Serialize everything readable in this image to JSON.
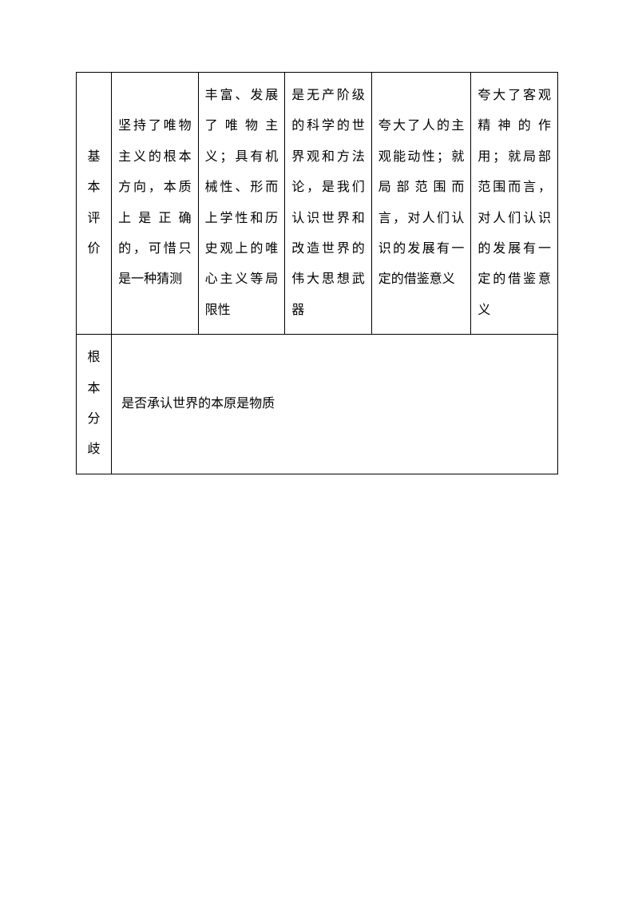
{
  "table": {
    "rows": [
      {
        "header": "基本评价",
        "cells": [
          "坚持了唯物主义的根本方向，本质上是正确的，可惜只是一种猜测",
          "丰富、发展了唯物主义；具有机械性、形而上学性和历史观上的唯心主义等局限性",
          "是无产阶级的科学的世界观和方法论，是我们认识世界和改造世界的伟大思想武器",
          "夸大了人的主观能动性；就局部范围而言，对人们认识的发展有一定的借鉴意义",
          "夸大了客观精神的作用；就局部范围而言，对人们认识的发展有一定的借鉴意义"
        ]
      },
      {
        "header": "根本分歧",
        "merged": "是否承认世界的本原是物质"
      }
    ]
  }
}
